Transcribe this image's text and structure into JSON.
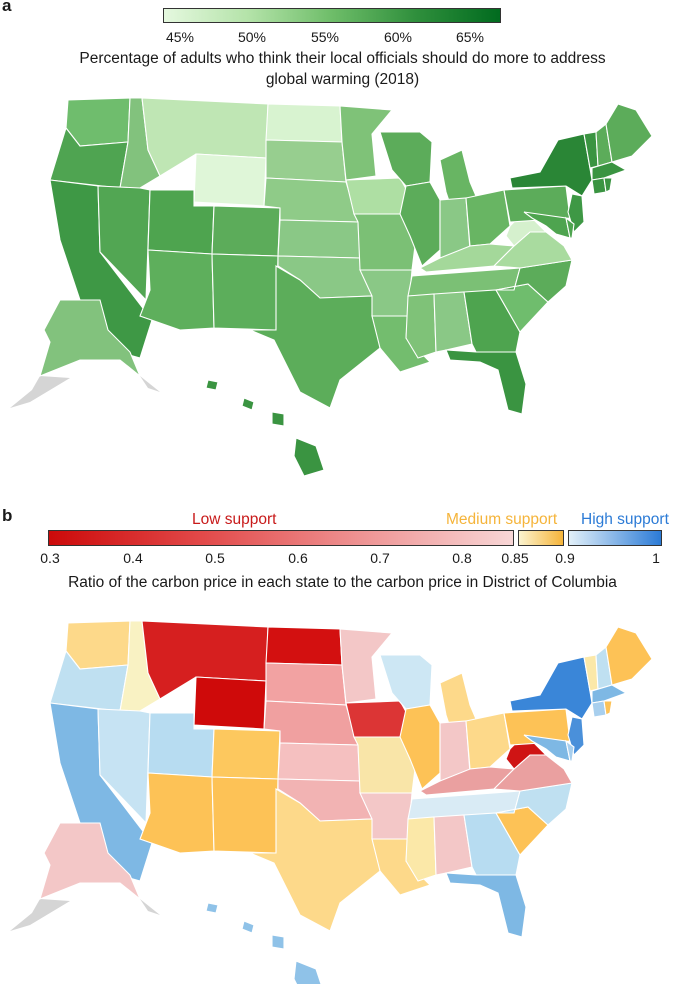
{
  "panel_a": {
    "label": "a",
    "colorbar": {
      "ticks": [
        "45%",
        "50%",
        "55%",
        "60%",
        "65%"
      ],
      "color_low": "#e5f8df",
      "color_high": "#016b1f"
    },
    "title_line1": "Percentage of adults who think their local officials should do more to address",
    "title_line2": "global warming (2018)"
  },
  "panel_b": {
    "label": "b",
    "legend": {
      "low_label": "Low support",
      "medium_label": "Medium support",
      "high_label": "High support",
      "low_color": "#c81a1a",
      "medium_color": "#f5b43a",
      "high_color": "#2c7bd6",
      "ticks": [
        "0.3",
        "0.4",
        "0.5",
        "0.6",
        "0.7",
        "0.8",
        "0.85",
        "0.9",
        "1"
      ]
    },
    "subtitle": "Ratio of the carbon price in each state to the carbon price in District of Columbia"
  },
  "states": [
    {
      "code": "WA",
      "a": "#6fbd6d",
      "b": "#fdd98a"
    },
    {
      "code": "OR",
      "a": "#4fa451",
      "b": "#bfe0f1"
    },
    {
      "code": "CA",
      "a": "#3e9845",
      "b": "#7eb8e4"
    },
    {
      "code": "ID",
      "a": "#82c27d",
      "b": "#f9f2c3"
    },
    {
      "code": "NV",
      "a": "#52a653",
      "b": "#c6e3f3"
    },
    {
      "code": "MT",
      "a": "#bfe6b4",
      "b": "#d61f1f"
    },
    {
      "code": "WY",
      "a": "#dff6d8",
      "b": "#cf0a0a"
    },
    {
      "code": "UT",
      "a": "#4ea44f",
      "b": "#b7dcf1"
    },
    {
      "code": "AZ",
      "a": "#5eaf5c",
      "b": "#fdc256"
    },
    {
      "code": "CO",
      "a": "#5cac5a",
      "b": "#fdc85e"
    },
    {
      "code": "NM",
      "a": "#5cae5b",
      "b": "#fdc256"
    },
    {
      "code": "ND",
      "a": "#d8f3d0",
      "b": "#d31010"
    },
    {
      "code": "SD",
      "a": "#97ce8f",
      "b": "#f2a2a2"
    },
    {
      "code": "NE",
      "a": "#8fcb88",
      "b": "#f0a0a0"
    },
    {
      "code": "KS",
      "a": "#8ac886",
      "b": "#f5c0c0"
    },
    {
      "code": "OK",
      "a": "#8ac886",
      "b": "#f2b3b3"
    },
    {
      "code": "TX",
      "a": "#5cad5a",
      "b": "#fdd98a"
    },
    {
      "code": "MN",
      "a": "#7fc278",
      "b": "#f3c7c7"
    },
    {
      "code": "IA",
      "a": "#aedfa3",
      "b": "#dc3535"
    },
    {
      "code": "MO",
      "a": "#7bc075",
      "b": "#f9e5a8"
    },
    {
      "code": "AR",
      "a": "#8ac886",
      "b": "#f3c7c7"
    },
    {
      "code": "LA",
      "a": "#73bd6e",
      "b": "#fdd98a"
    },
    {
      "code": "WI",
      "a": "#5cac5a",
      "b": "#cde7f4"
    },
    {
      "code": "IL",
      "a": "#5cac5a",
      "b": "#fdc256"
    },
    {
      "code": "MI",
      "a": "#68b563",
      "b": "#fdd98a"
    },
    {
      "code": "IN",
      "a": "#8ac886",
      "b": "#f3c7c7"
    },
    {
      "code": "OH",
      "a": "#68b563",
      "b": "#fdd98a"
    },
    {
      "code": "KY",
      "a": "#a4d89a",
      "b": "#eaa0a0"
    },
    {
      "code": "TN",
      "a": "#7bc075",
      "b": "#d9ebf5"
    },
    {
      "code": "MS",
      "a": "#7fc278",
      "b": "#fbe8a8"
    },
    {
      "code": "AL",
      "a": "#8ac886",
      "b": "#f3c7c7"
    },
    {
      "code": "GA",
      "a": "#4ea44f",
      "b": "#b7dcf1"
    },
    {
      "code": "FL",
      "a": "#3a9441",
      "b": "#7eb8e4"
    },
    {
      "code": "SC",
      "a": "#6fbd6d",
      "b": "#fdc256"
    },
    {
      "code": "NC",
      "a": "#5cac5a",
      "b": "#bfe0f1"
    },
    {
      "code": "VA",
      "a": "#a9db9f",
      "b": "#eaa0a0"
    },
    {
      "code": "WV",
      "a": "#d5f0cd",
      "b": "#cf1414"
    },
    {
      "code": "PA",
      "a": "#5cac5a",
      "b": "#fdc256"
    },
    {
      "code": "NY",
      "a": "#2a8636",
      "b": "#3a86d8"
    },
    {
      "code": "NJ",
      "a": "#3e9845",
      "b": "#4a90da"
    },
    {
      "code": "MD",
      "a": "#4ea44f",
      "b": "#7eb8e4"
    },
    {
      "code": "DE",
      "a": "#4ea44f",
      "b": "#a8cfee"
    },
    {
      "code": "VT",
      "a": "#3a9441",
      "b": "#fbe8a8"
    },
    {
      "code": "NH",
      "a": "#5cac5a",
      "b": "#bfe0f1"
    },
    {
      "code": "ME",
      "a": "#5cac5a",
      "b": "#fdc256"
    },
    {
      "code": "MA",
      "a": "#3a9441",
      "b": "#7eb8e4"
    },
    {
      "code": "CT",
      "a": "#3a9441",
      "b": "#a8cfee"
    },
    {
      "code": "RI",
      "a": "#3a9441",
      "b": "#fdc256"
    },
    {
      "code": "AK",
      "a": "#82c27d",
      "b": "#f3c7c7"
    },
    {
      "code": "HI",
      "a": "#3a9441",
      "b": "#8fc2e8"
    }
  ]
}
